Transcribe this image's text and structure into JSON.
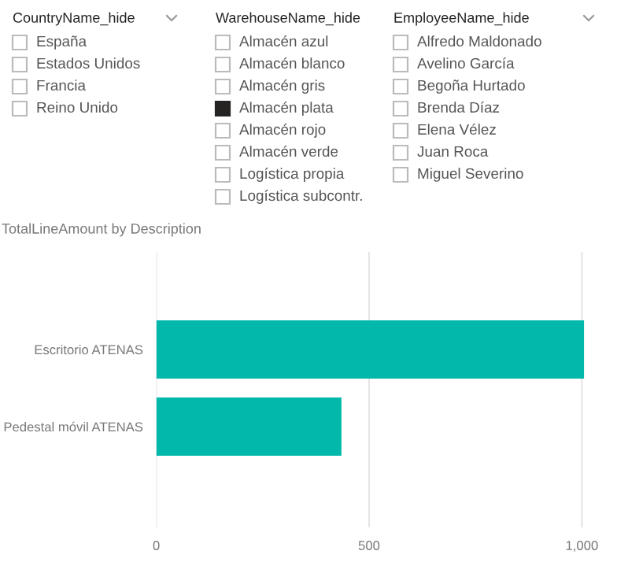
{
  "chart_data": [
    {
      "type": "other",
      "title": "CountryName_hide",
      "annotations": [
        "España",
        "Estados Unidos",
        "Francia",
        "Reino Unido"
      ],
      "colors": [
        "#ffffff",
        "#ffffff",
        "#ffffff",
        "#ffffff"
      ]
    },
    {
      "type": "other",
      "title": "WarehouseName_hide",
      "annotations": [
        "Almacén azul",
        "Almacén blanco",
        "Almacén gris",
        "Almacén plata",
        "Almacén rojo",
        "Almacén verde",
        "Logística propia",
        "Logística subcontr."
      ],
      "colors": [
        "#ffffff",
        "#ffffff",
        "#ffffff",
        "#252423",
        "#ffffff",
        "#ffffff",
        "#ffffff",
        "#ffffff"
      ]
    },
    {
      "type": "other",
      "title": "EmployeeName_hide",
      "annotations": [
        "Alfredo Maldonado",
        "Avelino García",
        "Begoña Hurtado",
        "Brenda Díaz",
        "Elena Vélez",
        "Juan Roca",
        "Miguel Severino"
      ],
      "colors": [
        "#ffffff",
        "#ffffff",
        "#ffffff",
        "#ffffff",
        "#ffffff",
        "#ffffff",
        "#ffffff"
      ]
    },
    {
      "type": "bar",
      "orientation": "horizontal",
      "title": "TotalLineAmount by Description",
      "categories": [
        "Escritorio ATENAS",
        "Pedestal móvil ATENAS"
      ],
      "values": [
        1005,
        435
      ],
      "color": "#01b8aa",
      "xlim": [
        0,
        1010
      ],
      "xticks": [
        0,
        500,
        {
          "value": 1000,
          "label": "1,000"
        }
      ],
      "grid": "x"
    }
  ]
}
